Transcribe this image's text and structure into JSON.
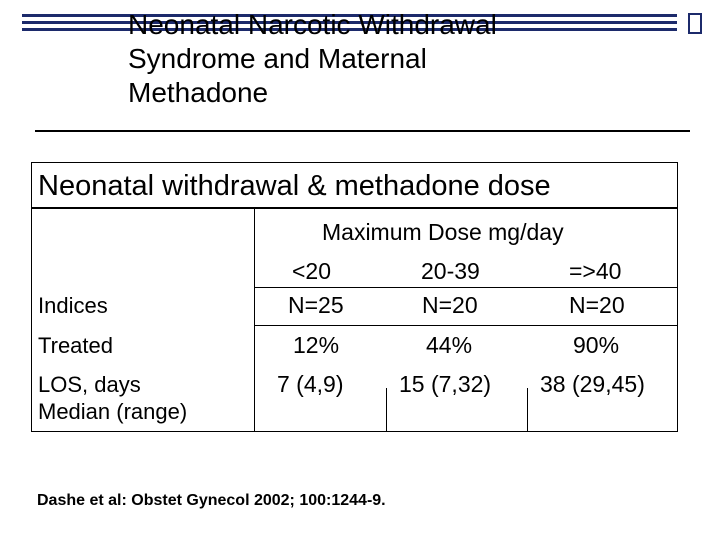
{
  "slide": {
    "title_lines": [
      "Neonatal Narcotic Withdrawal",
      "Syndrome and Maternal",
      "Methadone"
    ],
    "table_title": "Neonatal withdrawal & methadone dose",
    "dose_header": "Maximum Dose mg/day",
    "dose_groups": [
      "<20",
      "20-39",
      "=>40"
    ],
    "rows": [
      {
        "label": "Indices",
        "values": [
          "N=25",
          "N=20",
          "N=20"
        ]
      },
      {
        "label": "Treated",
        "values": [
          "12%",
          "44%",
          "90%"
        ]
      },
      {
        "label_lines": [
          "LOS, days",
          "Median (range)"
        ],
        "values": [
          "7 (4,9)",
          "15 (7,32)",
          "38 (29,45)"
        ]
      }
    ],
    "citation": "Dashe et al: Obstet Gynecol 2002; 100:1244-9."
  }
}
